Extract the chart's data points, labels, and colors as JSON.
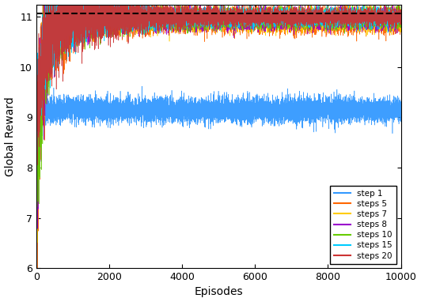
{
  "title": "",
  "xlabel": "Episodes",
  "ylabel": "Global Reward",
  "xlim": [
    0,
    10000
  ],
  "ylim": [
    6,
    11.25
  ],
  "yticks": [
    6,
    7,
    8,
    9,
    10,
    11
  ],
  "xticks": [
    0,
    2000,
    4000,
    6000,
    8000,
    10000
  ],
  "dashed_line_y": 11.07,
  "n_episodes": 10000,
  "series": [
    {
      "label": "step 1",
      "color": "#3399FF",
      "start_val": 8.92,
      "end_val": 9.15,
      "noise_scale": 0.12,
      "converge_ep": 80,
      "start_low": 8.92
    },
    {
      "label": "steps 5",
      "color": "#FF6600",
      "start_val": 6.5,
      "end_val": 10.93,
      "noise_scale": 0.12,
      "converge_ep": 400,
      "start_low": 6.5
    },
    {
      "label": "steps 7",
      "color": "#FFCC00",
      "start_val": 6.65,
      "end_val": 10.95,
      "noise_scale": 0.1,
      "converge_ep": 450,
      "start_low": 6.65
    },
    {
      "label": "steps 8",
      "color": "#9900CC",
      "start_val": 6.85,
      "end_val": 10.96,
      "noise_scale": 0.1,
      "converge_ep": 500,
      "start_low": 6.85
    },
    {
      "label": "steps 10",
      "color": "#66CC00",
      "start_val": 7.1,
      "end_val": 10.97,
      "noise_scale": 0.09,
      "converge_ep": 600,
      "start_low": 7.1
    },
    {
      "label": "steps 15",
      "color": "#00CCFF",
      "start_val": 8.9,
      "end_val": 10.99,
      "noise_scale": 0.08,
      "converge_ep": 800,
      "start_low": 8.9
    },
    {
      "label": "steps 20",
      "color": "#CC3333",
      "start_val": 9.0,
      "end_val": 11.0,
      "noise_scale": 0.08,
      "converge_ep": 1000,
      "start_low": 9.0
    }
  ],
  "legend_loc": "lower right",
  "background_color": "#ffffff"
}
